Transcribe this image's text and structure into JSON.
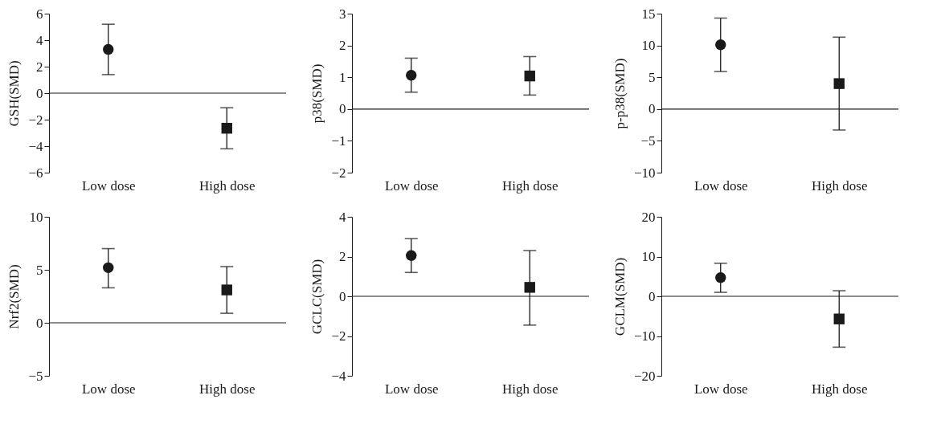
{
  "chart_data": [
    {
      "type": "scatter",
      "ylabel": "GSH(SMD)",
      "categories": [
        "Low dose",
        "High dose"
      ],
      "ylim": [
        -6,
        6
      ],
      "yticks": [
        -6,
        -4,
        -2,
        0,
        2,
        4,
        6
      ],
      "grid": false,
      "ref_lines": [
        {
          "axis": "y",
          "value": 0,
          "color": "#1a1a1a"
        }
      ],
      "series": [
        {
          "x": [
            "Low dose"
          ],
          "values": [
            3.3
          ],
          "errors": [
            [
              1.4,
              5.2
            ]
          ],
          "marker": "circle",
          "color": "#1a1a1a"
        },
        {
          "x": [
            "High dose"
          ],
          "values": [
            -2.65
          ],
          "errors": [
            [
              -4.2,
              -1.1
            ]
          ],
          "marker": "square",
          "color": "#1a1a1a"
        }
      ]
    },
    {
      "type": "scatter",
      "ylabel": "p38(SMD)",
      "categories": [
        "Low dose",
        "High dose"
      ],
      "ylim": [
        -2,
        3
      ],
      "yticks": [
        -2,
        -1,
        0,
        1,
        2,
        3
      ],
      "grid": false,
      "ref_lines": [
        {
          "axis": "y",
          "value": 0,
          "color": "#1a1a1a"
        }
      ],
      "series": [
        {
          "x": [
            "Low dose"
          ],
          "values": [
            1.06
          ],
          "errors": [
            [
              0.53,
              1.6
            ]
          ],
          "marker": "circle",
          "color": "#1a1a1a"
        },
        {
          "x": [
            "High dose"
          ],
          "values": [
            1.04
          ],
          "errors": [
            [
              0.44,
              1.65
            ]
          ],
          "marker": "square",
          "color": "#1a1a1a"
        }
      ]
    },
    {
      "type": "scatter",
      "ylabel": "p-p38(SMD)",
      "categories": [
        "Low dose",
        "High dose"
      ],
      "ylim": [
        -10,
        15
      ],
      "yticks": [
        -10,
        -5,
        0,
        5,
        10,
        15
      ],
      "grid": false,
      "ref_lines": [
        {
          "axis": "y",
          "value": 0,
          "color": "#1a1a1a"
        }
      ],
      "series": [
        {
          "x": [
            "Low dose"
          ],
          "values": [
            10.1
          ],
          "errors": [
            [
              5.9,
              14.3
            ]
          ],
          "marker": "circle",
          "color": "#1a1a1a"
        },
        {
          "x": [
            "High dose"
          ],
          "values": [
            4.0
          ],
          "errors": [
            [
              -3.3,
              11.3
            ]
          ],
          "marker": "square",
          "color": "#1a1a1a"
        }
      ]
    },
    {
      "type": "scatter",
      "ylabel": "Nrf2(SMD)",
      "categories": [
        "Low dose",
        "High dose"
      ],
      "ylim": [
        -5,
        10
      ],
      "yticks": [
        -5,
        0,
        5,
        10
      ],
      "grid": false,
      "ref_lines": [
        {
          "axis": "y",
          "value": 0,
          "color": "#1a1a1a"
        }
      ],
      "series": [
        {
          "x": [
            "Low dose"
          ],
          "values": [
            5.2
          ],
          "errors": [
            [
              3.3,
              7.0
            ]
          ],
          "marker": "circle",
          "color": "#1a1a1a"
        },
        {
          "x": [
            "High dose"
          ],
          "values": [
            3.1
          ],
          "errors": [
            [
              0.9,
              5.3
            ]
          ],
          "marker": "square",
          "color": "#1a1a1a"
        }
      ]
    },
    {
      "type": "scatter",
      "ylabel": "GCLC(SMD)",
      "categories": [
        "Low dose",
        "High dose"
      ],
      "ylim": [
        -4,
        4
      ],
      "yticks": [
        -4,
        -2,
        0,
        2,
        4
      ],
      "grid": false,
      "ref_lines": [
        {
          "axis": "y",
          "value": 0,
          "color": "#1a1a1a"
        }
      ],
      "series": [
        {
          "x": [
            "Low dose"
          ],
          "values": [
            2.05
          ],
          "errors": [
            [
              1.2,
              2.9
            ]
          ],
          "marker": "circle",
          "color": "#1a1a1a"
        },
        {
          "x": [
            "High dose"
          ],
          "values": [
            0.45
          ],
          "errors": [
            [
              -1.45,
              2.3
            ]
          ],
          "marker": "square",
          "color": "#1a1a1a"
        }
      ]
    },
    {
      "type": "scatter",
      "ylabel": "GCLM(SMD)",
      "categories": [
        "Low dose",
        "High dose"
      ],
      "ylim": [
        -20,
        20
      ],
      "yticks": [
        -20,
        -10,
        0,
        10,
        20
      ],
      "grid": false,
      "ref_lines": [
        {
          "axis": "y",
          "value": 0,
          "color": "#1a1a1a"
        }
      ],
      "series": [
        {
          "x": [
            "Low dose"
          ],
          "values": [
            4.7
          ],
          "errors": [
            [
              1.0,
              8.3
            ]
          ],
          "marker": "circle",
          "color": "#1a1a1a"
        },
        {
          "x": [
            "High dose"
          ],
          "values": [
            -5.7
          ],
          "errors": [
            [
              -12.8,
              1.4
            ]
          ],
          "marker": "square",
          "color": "#1a1a1a"
        }
      ]
    }
  ]
}
